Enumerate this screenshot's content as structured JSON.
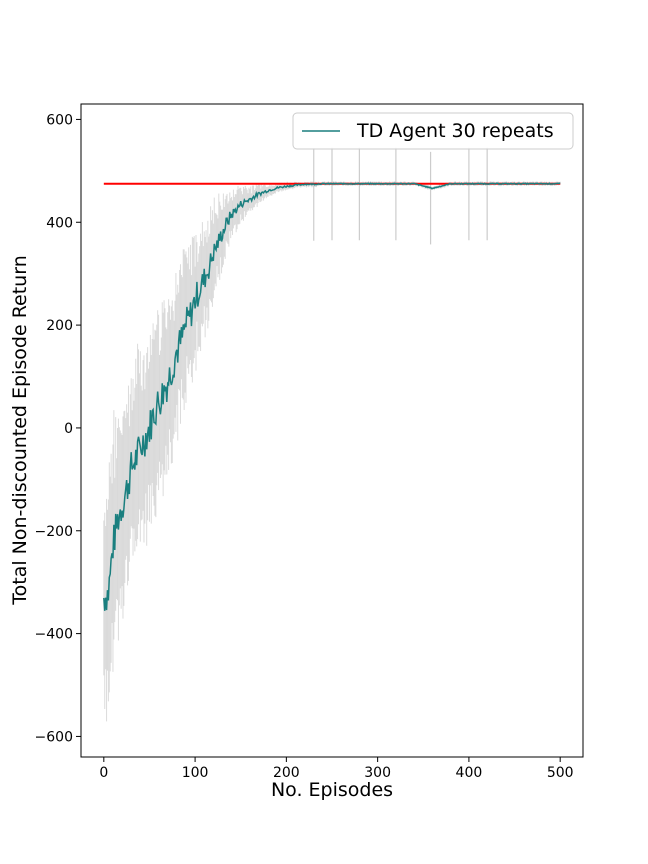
{
  "chart_data": {
    "type": "line",
    "xlabel": "No. Episodes",
    "ylabel": "Total Non-discounted Episode Return",
    "xlim": [
      -25,
      525
    ],
    "ylim": [
      -640,
      630
    ],
    "xticks": [
      0,
      100,
      200,
      300,
      400,
      500
    ],
    "yticks": [
      -600,
      -400,
      -200,
      0,
      200,
      400,
      600
    ],
    "xtick_labels": [
      "0",
      "100",
      "200",
      "300",
      "400",
      "500"
    ],
    "ytick_labels": [
      "−600",
      "−400",
      "−200",
      "0",
      "200",
      "400",
      "600"
    ],
    "grid": false,
    "legend_position": "top-right",
    "series": [
      {
        "name": "TD Agent 30 repeats",
        "color": "#1a7f7f",
        "x": [
          0,
          5,
          10,
          15,
          20,
          25,
          30,
          35,
          40,
          45,
          50,
          55,
          60,
          65,
          70,
          75,
          80,
          85,
          90,
          95,
          100,
          105,
          110,
          115,
          120,
          125,
          130,
          135,
          140,
          145,
          150,
          160,
          170,
          180,
          190,
          200,
          210,
          220,
          230,
          240,
          250,
          260,
          280,
          300,
          320,
          340,
          360,
          380,
          400,
          420,
          440,
          460,
          480,
          500
        ],
        "y": [
          -330,
          -320,
          -230,
          -180,
          -150,
          -120,
          -80,
          -60,
          -40,
          -20,
          0,
          30,
          50,
          70,
          90,
          120,
          150,
          170,
          200,
          220,
          250,
          270,
          290,
          310,
          340,
          360,
          380,
          400,
          415,
          425,
          435,
          445,
          455,
          462,
          467,
          470,
          472,
          474,
          474,
          475,
          475,
          475,
          475,
          475,
          475,
          475,
          466,
          475,
          475,
          475,
          475,
          475,
          475,
          475
        ],
        "spread": [
          230,
          230,
          220,
          210,
          200,
          200,
          190,
          190,
          180,
          180,
          180,
          180,
          170,
          170,
          170,
          160,
          160,
          150,
          150,
          140,
          130,
          120,
          110,
          100,
          90,
          80,
          70,
          60,
          50,
          40,
          35,
          25,
          18,
          12,
          10,
          8,
          6,
          5,
          5,
          4,
          4,
          4,
          4,
          4,
          4,
          4,
          4,
          4,
          4,
          4,
          4,
          4,
          4,
          4
        ]
      }
    ],
    "reference_line": {
      "y": 475,
      "x_range": [
        0,
        500
      ],
      "color": "#ff0000"
    },
    "errorbar_color": "#cccccc"
  }
}
